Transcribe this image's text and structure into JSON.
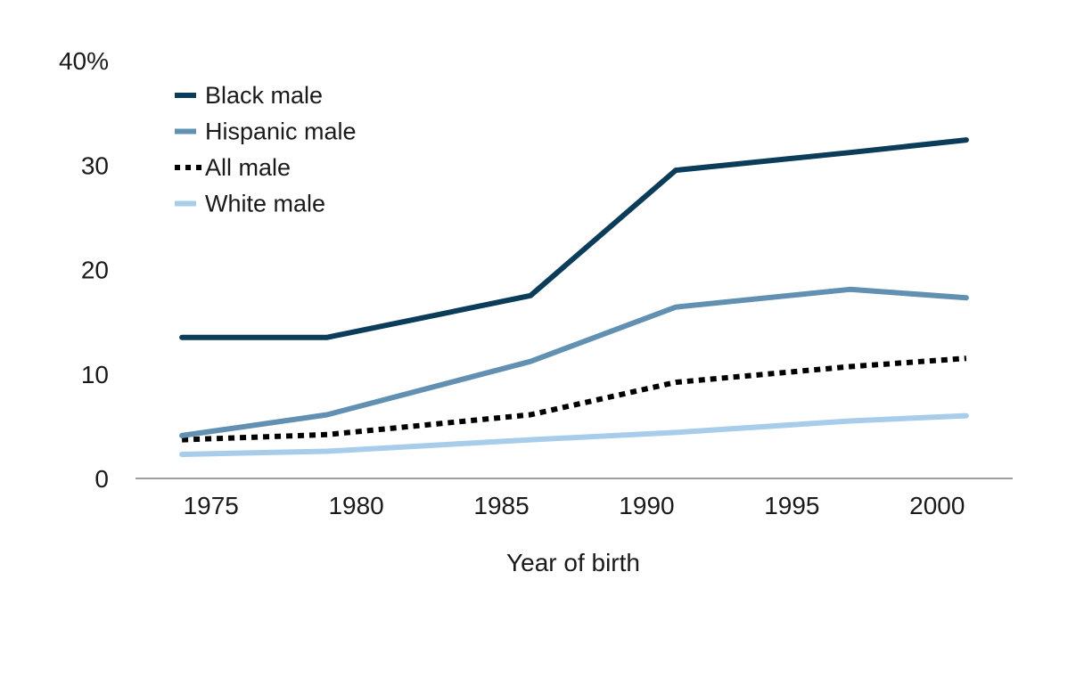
{
  "chart_data": {
    "type": "line",
    "title": "",
    "xlabel": "Year of birth",
    "ylabel": "",
    "xlim": [
      1972.4,
      2002.6
    ],
    "ylim": [
      0,
      40
    ],
    "x_ticks": [
      1975,
      1980,
      1985,
      1990,
      1995,
      2000
    ],
    "x_tick_labels": [
      "1975",
      "1980",
      "1985",
      "1990",
      "1995",
      "2000"
    ],
    "y_ticks": [
      0,
      10,
      20,
      30,
      40
    ],
    "y_tick_labels": [
      "0",
      "10",
      "20",
      "30",
      "40%"
    ],
    "grid": false,
    "legend_position": "top-left",
    "series": [
      {
        "name": "Black male",
        "color": "#0b3c5a",
        "style": "solid",
        "x": [
          1974,
          1979,
          1986,
          1991,
          1997,
          2001
        ],
        "y": [
          13.5,
          13.5,
          17.5,
          29.5,
          31.2,
          32.4
        ]
      },
      {
        "name": "Hispanic male",
        "color": "#6290b2",
        "style": "solid",
        "x": [
          1974,
          1979,
          1986,
          1991,
          1997,
          2001
        ],
        "y": [
          4.1,
          6.1,
          11.2,
          16.4,
          18.1,
          17.3
        ]
      },
      {
        "name": "All male",
        "color": "#000000",
        "style": "dotted",
        "x": [
          1974,
          1979,
          1986,
          1991,
          1997,
          2001
        ],
        "y": [
          3.7,
          4.2,
          6.1,
          9.2,
          10.7,
          11.5
        ]
      },
      {
        "name": "White male",
        "color": "#a8cdea",
        "style": "solid",
        "x": [
          1974,
          1979,
          1986,
          1991,
          1997,
          2001
        ],
        "y": [
          2.3,
          2.6,
          3.7,
          4.4,
          5.5,
          6.0
        ]
      }
    ]
  }
}
